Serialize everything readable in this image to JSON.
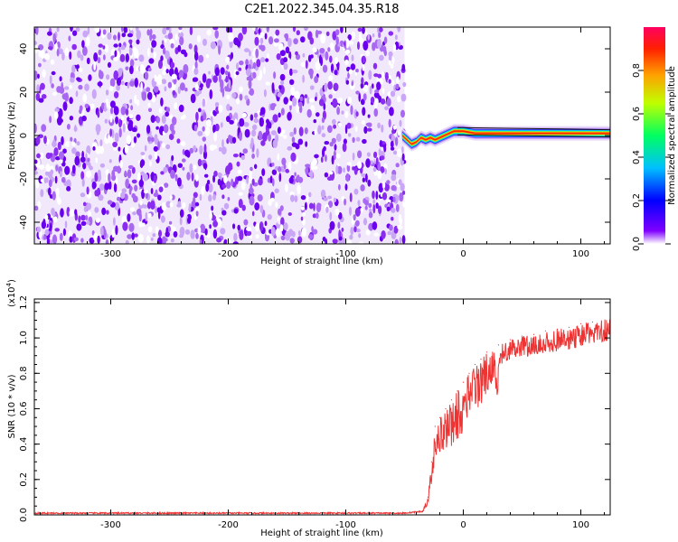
{
  "title": "C2E1.2022.345.04.35.R18",
  "chart_data": [
    {
      "type": "heatmap",
      "xlabel": "Height of straight line (km)",
      "ylabel": "Frequency (Hz)",
      "xlim": [
        -365,
        125
      ],
      "ylim": [
        -50,
        50
      ],
      "xticks": [
        -300,
        -200,
        -100,
        0,
        100
      ],
      "yticks": [
        -40,
        -20,
        0,
        20,
        40
      ],
      "noise_region": {
        "x_from": -365,
        "x_to": -50,
        "description_value": "uniform noise, low amplitude"
      },
      "ridge": {
        "x": [
          -52,
          -48,
          -44,
          -40,
          -36,
          -32,
          -28,
          -24,
          -20,
          -16,
          -12,
          -8,
          -4,
          0,
          10,
          20,
          40,
          60,
          80,
          100,
          125
        ],
        "freq": [
          0,
          -2,
          -4,
          -3,
          -1,
          -2,
          -1,
          -2,
          -1,
          0,
          1,
          2,
          2,
          2,
          1,
          1,
          1,
          1,
          1,
          1,
          1
        ],
        "amplitude": [
          0.15,
          0.2,
          0.25,
          0.3,
          0.35,
          0.4,
          0.5,
          0.55,
          0.6,
          0.65,
          0.7,
          0.75,
          0.8,
          0.85,
          0.9,
          0.9,
          0.9,
          0.9,
          0.9,
          0.9,
          0.9
        ]
      },
      "colorbar": {
        "label": "Normalized spectral amplitude",
        "range": [
          0,
          1
        ],
        "ticks": [
          "0.0",
          "0.2",
          "0.4",
          "0.6",
          "0.8"
        ]
      }
    },
    {
      "type": "line",
      "xlabel": "Height of straight line (km)",
      "ylabel": "SNR (10 * v/v)",
      "scale_label": "(x10",
      "scale_exp": "4",
      "scale_close": ")",
      "xlim": [
        -365,
        125
      ],
      "ylim": [
        0,
        1.22
      ],
      "xticks": [
        -300,
        -200,
        -100,
        0,
        100
      ],
      "yticks": [
        "0.0",
        "0.2",
        "0.4",
        "0.6",
        "0.8",
        "1.0",
        "1.2"
      ],
      "color": "#ee3333",
      "series": [
        {
          "x": [
            -365,
            -300,
            -200,
            -100,
            -50,
            -35,
            -30,
            -27,
            -24,
            -20,
            -15,
            -10,
            -5,
            0,
            5,
            10,
            15,
            20,
            30,
            40,
            50,
            60,
            70,
            80,
            90,
            100,
            110,
            125
          ],
          "values": [
            0.01,
            0.01,
            0.01,
            0.01,
            0.01,
            0.02,
            0.1,
            0.3,
            0.5,
            0.55,
            0.6,
            0.65,
            0.7,
            0.75,
            0.8,
            0.85,
            0.88,
            0.92,
            0.96,
            0.99,
            1.01,
            1.02,
            1.04,
            1.05,
            1.06,
            1.08,
            1.09,
            1.11
          ]
        }
      ]
    }
  ]
}
